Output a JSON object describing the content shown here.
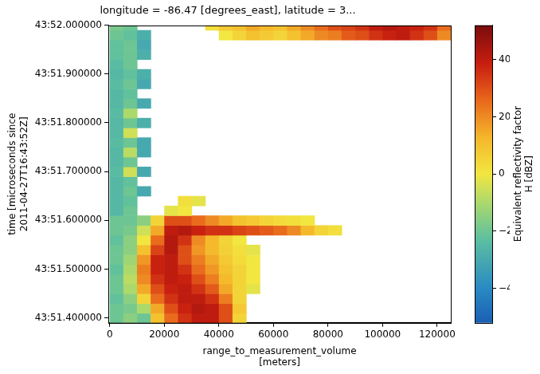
{
  "chart_data": {
    "type": "heatmap",
    "title": "longitude = -86.47 [degrees_east], latitude = 3...",
    "x_label": [
      "range_to_measurement_volume",
      "[meters]"
    ],
    "y_label": [
      "time [microseconds since",
      "2011-04-27T16:43:52Z]"
    ],
    "xlim": [
      -500,
      125000
    ],
    "xticks": [
      0,
      20000,
      40000,
      60000,
      80000,
      100000,
      120000
    ],
    "ylim": [
      51.39,
      52.0
    ],
    "yticks": [
      {
        "value": 51.4,
        "label": "43:51.400000"
      },
      {
        "value": 51.5,
        "label": "43:51.500000"
      },
      {
        "value": 51.6,
        "label": "43:51.600000"
      },
      {
        "value": 51.7,
        "label": "43:51.700000"
      },
      {
        "value": 51.8,
        "label": "43:51.800000"
      },
      {
        "value": 51.9,
        "label": "43:51.900000"
      },
      {
        "value": 52.0,
        "label": "43:52.000000"
      }
    ],
    "grid": false,
    "x_edges": [
      0,
      5000,
      10000,
      15000,
      20000,
      25000,
      30000,
      35000,
      40000,
      45000,
      50000,
      55000,
      60000,
      65000,
      70000,
      75000,
      80000,
      85000,
      90000,
      95000,
      100000,
      105000,
      110000,
      115000,
      120000,
      125000
    ],
    "y_edges": [
      51.39,
      51.41,
      51.43,
      51.45,
      51.47,
      51.49,
      51.51,
      51.53,
      51.55,
      51.57,
      51.59,
      51.61,
      51.63,
      51.65,
      51.67,
      51.69,
      51.71,
      51.73,
      51.75,
      51.77,
      51.79,
      51.81,
      51.83,
      51.85,
      51.87,
      51.89,
      51.91,
      51.93,
      51.95,
      51.97,
      51.99,
      52.0
    ],
    "z": [
      [
        -20,
        -15,
        -20,
        10,
        25,
        35,
        40,
        40,
        30,
        5,
        null,
        null,
        null,
        null,
        null,
        null,
        null,
        null,
        null,
        null,
        null,
        null,
        null,
        null,
        null
      ],
      [
        -20,
        -18,
        -10,
        15,
        30,
        38,
        42,
        40,
        30,
        8,
        null,
        null,
        null,
        null,
        null,
        null,
        null,
        null,
        null,
        null,
        null,
        null,
        null,
        null,
        null
      ],
      [
        -22,
        -15,
        5,
        25,
        35,
        40,
        40,
        35,
        22,
        5,
        null,
        null,
        null,
        null,
        null,
        null,
        null,
        null,
        null,
        null,
        null,
        null,
        null,
        null,
        null
      ],
      [
        -20,
        -10,
        15,
        30,
        38,
        40,
        35,
        28,
        15,
        5,
        -2,
        null,
        null,
        null,
        null,
        null,
        null,
        null,
        null,
        null,
        null,
        null,
        null,
        null,
        null
      ],
      [
        -20,
        -8,
        20,
        35,
        40,
        38,
        30,
        22,
        12,
        5,
        0,
        null,
        null,
        null,
        null,
        null,
        null,
        null,
        null,
        null,
        null,
        null,
        null,
        null,
        null
      ],
      [
        -22,
        -10,
        22,
        38,
        40,
        35,
        25,
        18,
        10,
        5,
        0,
        null,
        null,
        null,
        null,
        null,
        null,
        null,
        null,
        null,
        null,
        null,
        null,
        null,
        null
      ],
      [
        -20,
        -12,
        18,
        38,
        40,
        30,
        22,
        15,
        8,
        3,
        0,
        null,
        null,
        null,
        null,
        null,
        null,
        null,
        null,
        null,
        null,
        null,
        null,
        null,
        null
      ],
      [
        -20,
        -15,
        10,
        32,
        42,
        30,
        18,
        12,
        6,
        2,
        -2,
        null,
        null,
        null,
        null,
        null,
        null,
        null,
        null,
        null,
        null,
        null,
        null,
        null,
        null
      ],
      [
        -22,
        -15,
        0,
        25,
        42,
        35,
        20,
        12,
        5,
        0,
        null,
        null,
        null,
        null,
        null,
        null,
        null,
        null,
        null,
        null,
        null,
        null,
        null,
        null,
        null
      ],
      [
        -20,
        -18,
        -5,
        15,
        40,
        42,
        38,
        35,
        35,
        32,
        30,
        28,
        25,
        20,
        12,
        5,
        2,
        null,
        null,
        null,
        null,
        null,
        null,
        null,
        null
      ],
      [
        -20,
        -20,
        -15,
        5,
        30,
        30,
        25,
        20,
        15,
        10,
        8,
        5,
        3,
        2,
        0,
        null,
        null,
        null,
        null,
        null,
        null,
        null,
        null,
        null,
        null
      ],
      [
        -25,
        -20,
        null,
        null,
        -2,
        0,
        null,
        null,
        null,
        null,
        null,
        null,
        null,
        null,
        null,
        null,
        null,
        null,
        null,
        null,
        null,
        null,
        null,
        null,
        null
      ],
      [
        -25,
        -22,
        null,
        null,
        null,
        2,
        -2,
        null,
        null,
        null,
        null,
        null,
        null,
        null,
        null,
        null,
        null,
        null,
        null,
        null,
        null,
        null,
        null,
        null,
        null
      ],
      [
        -25,
        -20,
        -30,
        null,
        null,
        null,
        null,
        null,
        null,
        null,
        null,
        null,
        null,
        null,
        null,
        null,
        null,
        null,
        null,
        null,
        null,
        null,
        null,
        null,
        null
      ],
      [
        -25,
        -22,
        null,
        null,
        null,
        null,
        null,
        null,
        null,
        null,
        null,
        null,
        null,
        null,
        null,
        null,
        null,
        null,
        null,
        null,
        null,
        null,
        null,
        null,
        null
      ],
      [
        -24,
        -5,
        -30,
        null,
        null,
        null,
        null,
        null,
        null,
        null,
        null,
        null,
        null,
        null,
        null,
        null,
        null,
        null,
        null,
        null,
        null,
        null,
        null,
        null,
        null
      ],
      [
        -25,
        -20,
        null,
        null,
        null,
        null,
        null,
        null,
        null,
        null,
        null,
        null,
        null,
        null,
        null,
        null,
        null,
        null,
        null,
        null,
        null,
        null,
        null,
        null,
        null
      ],
      [
        -25,
        -8,
        -30,
        null,
        null,
        null,
        null,
        null,
        null,
        null,
        null,
        null,
        null,
        null,
        null,
        null,
        null,
        null,
        null,
        null,
        null,
        null,
        null,
        null,
        null
      ],
      [
        -24,
        -20,
        -30,
        null,
        null,
        null,
        null,
        null,
        null,
        null,
        null,
        null,
        null,
        null,
        null,
        null,
        null,
        null,
        null,
        null,
        null,
        null,
        null,
        null,
        null
      ],
      [
        -25,
        -5,
        null,
        null,
        null,
        null,
        null,
        null,
        null,
        null,
        null,
        null,
        null,
        null,
        null,
        null,
        null,
        null,
        null,
        null,
        null,
        null,
        null,
        null,
        null
      ],
      [
        -25,
        -20,
        -28,
        null,
        null,
        null,
        null,
        null,
        null,
        null,
        null,
        null,
        null,
        null,
        null,
        null,
        null,
        null,
        null,
        null,
        null,
        null,
        null,
        null,
        null
      ],
      [
        -24,
        -10,
        null,
        null,
        null,
        null,
        null,
        null,
        null,
        null,
        null,
        null,
        null,
        null,
        null,
        null,
        null,
        null,
        null,
        null,
        null,
        null,
        null,
        null,
        null
      ],
      [
        -25,
        -20,
        -30,
        null,
        null,
        null,
        null,
        null,
        null,
        null,
        null,
        null,
        null,
        null,
        null,
        null,
        null,
        null,
        null,
        null,
        null,
        null,
        null,
        null,
        null
      ],
      [
        -25,
        -22,
        null,
        null,
        null,
        null,
        null,
        null,
        null,
        null,
        null,
        null,
        null,
        null,
        null,
        null,
        null,
        null,
        null,
        null,
        null,
        null,
        null,
        null,
        null
      ],
      [
        -24,
        -20,
        -30,
        null,
        null,
        null,
        null,
        null,
        null,
        null,
        null,
        null,
        null,
        null,
        null,
        null,
        null,
        null,
        null,
        null,
        null,
        null,
        null,
        null,
        null
      ],
      [
        -25,
        -22,
        -28,
        null,
        null,
        null,
        null,
        null,
        null,
        null,
        null,
        null,
        null,
        null,
        null,
        null,
        null,
        null,
        null,
        null,
        null,
        null,
        null,
        null,
        null
      ],
      [
        -24,
        -20,
        null,
        null,
        null,
        null,
        null,
        null,
        null,
        null,
        null,
        null,
        null,
        null,
        null,
        null,
        null,
        null,
        null,
        null,
        null,
        null,
        null,
        null,
        null
      ],
      [
        -22,
        -20,
        -28,
        null,
        null,
        null,
        null,
        null,
        null,
        null,
        null,
        null,
        null,
        null,
        null,
        null,
        null,
        null,
        null,
        null,
        null,
        null,
        null,
        null,
        null
      ],
      [
        -22,
        -20,
        -30,
        null,
        null,
        null,
        null,
        null,
        null,
        null,
        null,
        null,
        null,
        null,
        null,
        null,
        null,
        null,
        null,
        null,
        null,
        null,
        null,
        null,
        null
      ],
      [
        -20,
        -22,
        -28,
        null,
        null,
        null,
        null,
        null,
        0,
        5,
        10,
        8,
        5,
        10,
        15,
        20,
        22,
        28,
        30,
        35,
        38,
        40,
        35,
        30,
        20
      ],
      [
        -18,
        -20,
        null,
        null,
        null,
        null,
        null,
        2,
        8,
        10,
        15,
        12,
        10,
        15,
        20,
        25,
        30,
        32,
        35,
        40,
        42,
        40,
        38,
        35,
        25
      ]
    ],
    "colorbar": {
      "label": [
        "Equivalent reflectivity factor",
        "H [dBZ]"
      ],
      "range": [
        -52,
        52
      ],
      "ticks": [
        {
          "value": -40,
          "label": "−40"
        },
        {
          "value": -20,
          "label": "−20"
        },
        0,
        20,
        40
      ]
    }
  }
}
